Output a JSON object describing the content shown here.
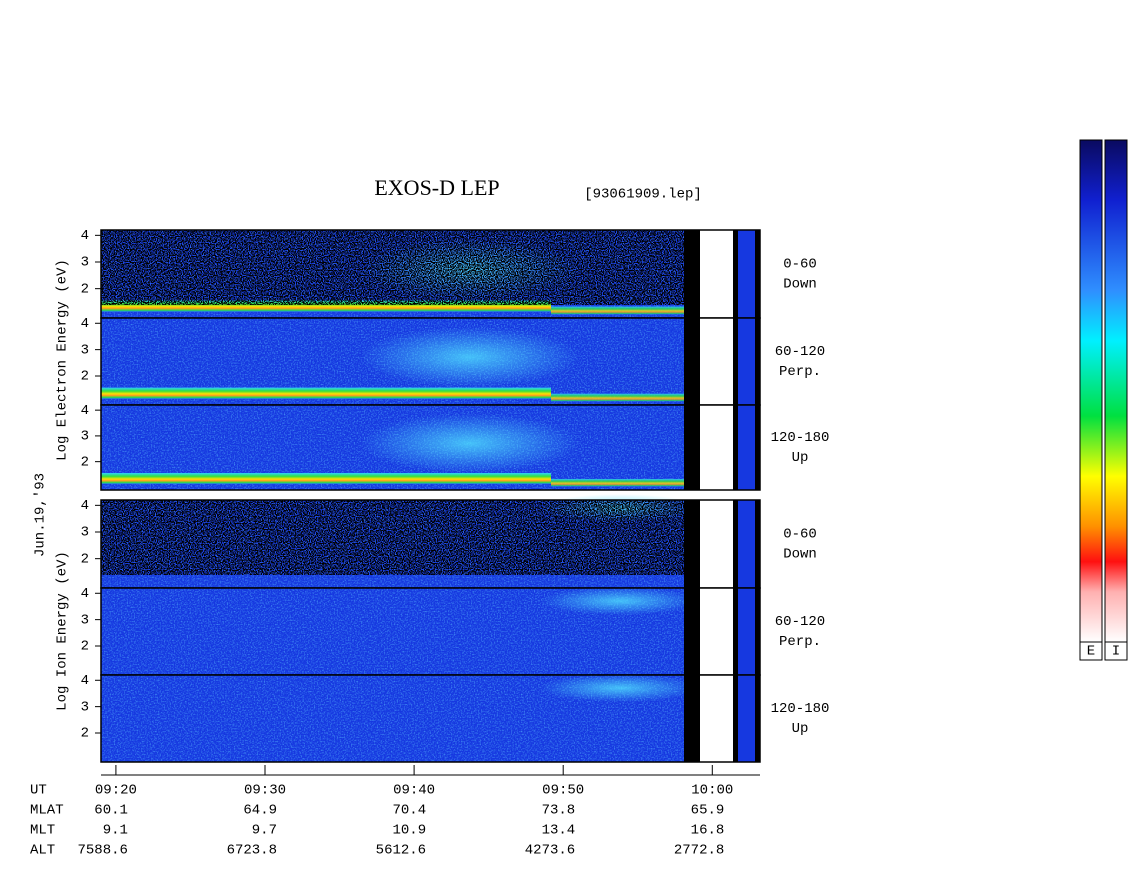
{
  "chart_data": {
    "type": "spectrogram",
    "title": "EXOS-D LEP",
    "subtitle": "[93061909.lep]",
    "date_label": "Jun.19,'93",
    "groups": [
      {
        "ylabel": "Log Electron Energy (eV)",
        "panels": [
          {
            "angle": "0-60",
            "direction": "Down"
          },
          {
            "angle": "60-120",
            "direction": "Perp."
          },
          {
            "angle": "120-180",
            "direction": "Up"
          }
        ]
      },
      {
        "ylabel": "Log Ion Energy (eV)",
        "panels": [
          {
            "angle": "0-60",
            "direction": "Down"
          },
          {
            "angle": "60-120",
            "direction": "Perp."
          },
          {
            "angle": "120-180",
            "direction": "Up"
          }
        ]
      }
    ],
    "ylim": [
      0.9,
      4.2
    ],
    "yticks": [
      2,
      3,
      4
    ],
    "xlim": [
      559,
      603.2
    ],
    "xticks": [
      {
        "value": 560,
        "label": "09:20"
      },
      {
        "value": 570,
        "label": "09:30"
      },
      {
        "value": 580,
        "label": "09:40"
      },
      {
        "value": 590,
        "label": "09:50"
      },
      {
        "value": 600,
        "label": "10:00"
      }
    ],
    "xlabel": "UT",
    "ephemeris": [
      {
        "name": "MLAT",
        "values": [
          60.1,
          64.9,
          70.4,
          73.8,
          65.9
        ]
      },
      {
        "name": "MLT",
        "values": [
          9.1,
          9.7,
          10.9,
          13.4,
          16.8
        ]
      },
      {
        "name": "ALT",
        "values": [
          7588.6,
          6723.8,
          5612.6,
          4273.6,
          2772.8
        ]
      }
    ],
    "colorbar_labels": [
      "E",
      "I"
    ]
  }
}
